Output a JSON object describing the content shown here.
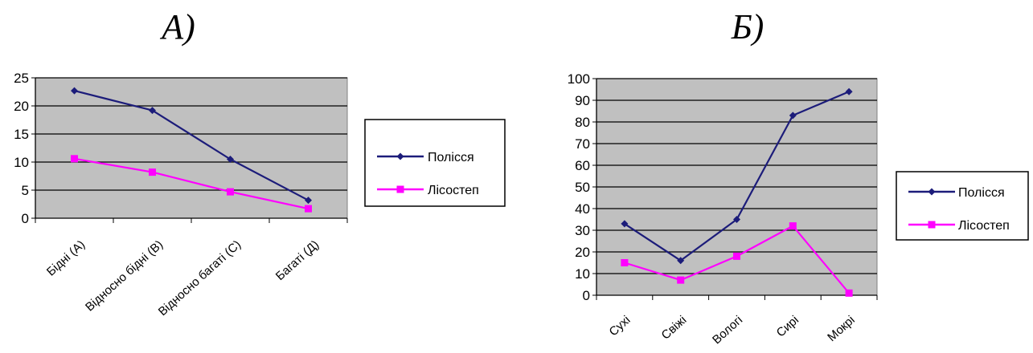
{
  "chart_data": [
    {
      "type": "line",
      "panel_label": "А)",
      "categories": [
        "Бідні (А)",
        "Відносно бідні (В)",
        "Відносно багаті (С)",
        "Багаті (Д)"
      ],
      "series": [
        {
          "name": "Полісся",
          "values": [
            22.7,
            19.2,
            10.5,
            3.2
          ],
          "color": "#1c1c7a",
          "marker": "diamond"
        },
        {
          "name": "Лісостеп",
          "values": [
            10.6,
            8.2,
            4.7,
            1.7
          ],
          "color": "#ff00ff",
          "marker": "square"
        }
      ],
      "ylim": [
        0,
        25
      ],
      "yticks": [
        0,
        5,
        10,
        15,
        20,
        25
      ],
      "grid": true,
      "plot_background": "#c0c0c0",
      "legend": "right"
    },
    {
      "type": "line",
      "panel_label": "Б)",
      "categories": [
        "Сухі",
        "Свіжі",
        "Вологі",
        "Сирі",
        "Мокрі"
      ],
      "series": [
        {
          "name": "Полісся",
          "values": [
            33,
            16,
            35,
            83,
            94
          ],
          "color": "#1c1c7a",
          "marker": "diamond"
        },
        {
          "name": "Лісостеп",
          "values": [
            15,
            7,
            18,
            32,
            1
          ],
          "color": "#ff00ff",
          "marker": "square"
        }
      ],
      "ylim": [
        0,
        100
      ],
      "yticks": [
        0,
        10,
        20,
        30,
        40,
        50,
        60,
        70,
        80,
        90,
        100
      ],
      "grid": true,
      "plot_background": "#c0c0c0",
      "legend": "right"
    }
  ]
}
